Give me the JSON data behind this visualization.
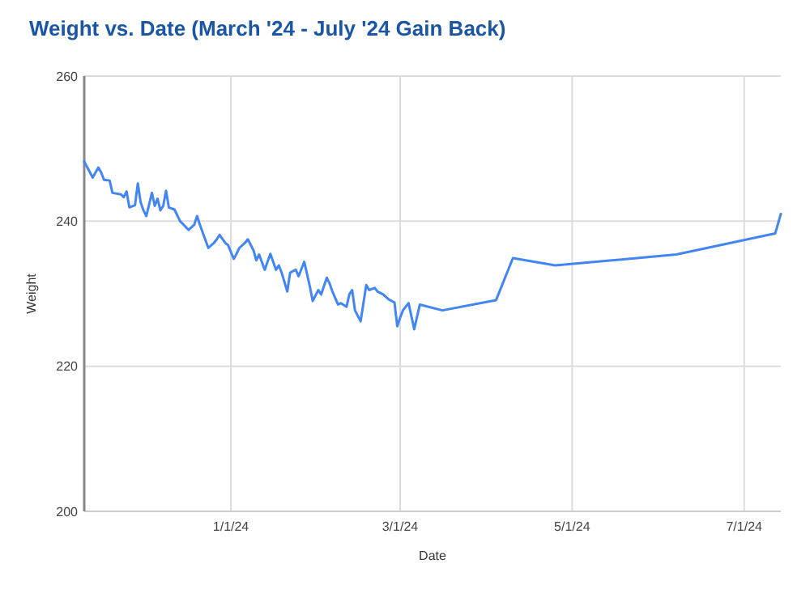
{
  "chart_data": {
    "type": "line",
    "title": "Weight vs. Date (March '24 - July '24 Gain Back)",
    "xlabel": "Date",
    "ylabel": "Weight",
    "x": [
      "2023-11-10",
      "2023-11-13",
      "2023-11-15",
      "2023-11-16",
      "2023-11-17",
      "2023-11-19",
      "2023-11-20",
      "2023-11-23",
      "2023-11-24",
      "2023-11-25",
      "2023-11-26",
      "2023-11-28",
      "2023-11-29",
      "2023-11-30",
      "2023-12-01",
      "2023-12-02",
      "2023-12-04",
      "2023-12-05",
      "2023-12-06",
      "2023-12-07",
      "2023-12-08",
      "2023-12-09",
      "2023-12-10",
      "2023-12-12",
      "2023-12-14",
      "2023-12-15",
      "2023-12-17",
      "2023-12-19",
      "2023-12-20",
      "2023-12-21",
      "2023-12-24",
      "2023-12-26",
      "2023-12-27",
      "2023-12-28",
      "2023-12-30",
      "2023-12-31",
      "2024-01-02",
      "2024-01-03",
      "2024-01-04",
      "2024-01-06",
      "2024-01-07",
      "2024-01-09",
      "2024-01-10",
      "2024-01-11",
      "2024-01-13",
      "2024-01-14",
      "2024-01-15",
      "2024-01-17",
      "2024-01-18",
      "2024-01-19",
      "2024-01-21",
      "2024-01-22",
      "2024-01-24",
      "2024-01-25",
      "2024-01-27",
      "2024-01-29",
      "2024-01-30",
      "2024-02-01",
      "2024-02-02",
      "2024-02-04",
      "2024-02-05",
      "2024-02-06",
      "2024-02-08",
      "2024-02-09",
      "2024-02-11",
      "2024-02-12",
      "2024-02-13",
      "2024-02-14",
      "2024-02-16",
      "2024-02-18",
      "2024-02-19",
      "2024-02-21",
      "2024-02-22",
      "2024-02-24",
      "2024-02-26",
      "2024-02-28",
      "2024-02-29",
      "2024-03-01",
      "2024-03-02",
      "2024-03-04",
      "2024-03-06",
      "2024-03-08",
      "2024-03-16",
      "2024-04-04",
      "2024-04-10",
      "2024-04-25",
      "2024-06-07",
      "2024-07-12",
      "2024-07-14"
    ],
    "series": [
      {
        "color": "#4285f4",
        "values": [
          248.2,
          246,
          247.4,
          246.7,
          245.7,
          245.6,
          243.9,
          243.7,
          243.3,
          244.1,
          241.9,
          242.2,
          245.2,
          242.6,
          241.5,
          240.7,
          243.9,
          242.1,
          243.1,
          241.5,
          242.1,
          244.2,
          241.9,
          241.6,
          240.0,
          239.6,
          238.8,
          239.5,
          240.7,
          239.5,
          236.3,
          237.0,
          237.5,
          238.1,
          237.0,
          236.7,
          234.8,
          235.5,
          236.3,
          237.0,
          237.5,
          236.0,
          234.6,
          235.4,
          233.3,
          234.4,
          235.5,
          233.3,
          233.9,
          232.9,
          230.3,
          232.9,
          233.3,
          232.4,
          234.4,
          231.0,
          229.0,
          230.5,
          229.9,
          232.2,
          231.4,
          230.3,
          228.5,
          228.7,
          228.2,
          229.9,
          230.5,
          227.7,
          226.2,
          231.2,
          230.5,
          230.8,
          230.3,
          229.9,
          229.2,
          228.8,
          225.5,
          226.7,
          227.7,
          228.7,
          225.1,
          228.5,
          227.7,
          229.1,
          234.9,
          233.9,
          235.4,
          238.3,
          241.0
        ]
      }
    ],
    "xlim": [
      "2023-11-10",
      "2024-07-14"
    ],
    "xticks": [
      {
        "value": "2024-01-01",
        "label": "1/1/24"
      },
      {
        "value": "2024-03-01",
        "label": "3/1/24"
      },
      {
        "value": "2024-05-01",
        "label": "5/1/24"
      },
      {
        "value": "2024-07-01",
        "label": "7/1/24"
      }
    ],
    "ylim": [
      200,
      260
    ],
    "yticks": [
      200,
      220,
      240,
      260
    ],
    "grid": true,
    "marker": "none",
    "line_style": "solid"
  }
}
